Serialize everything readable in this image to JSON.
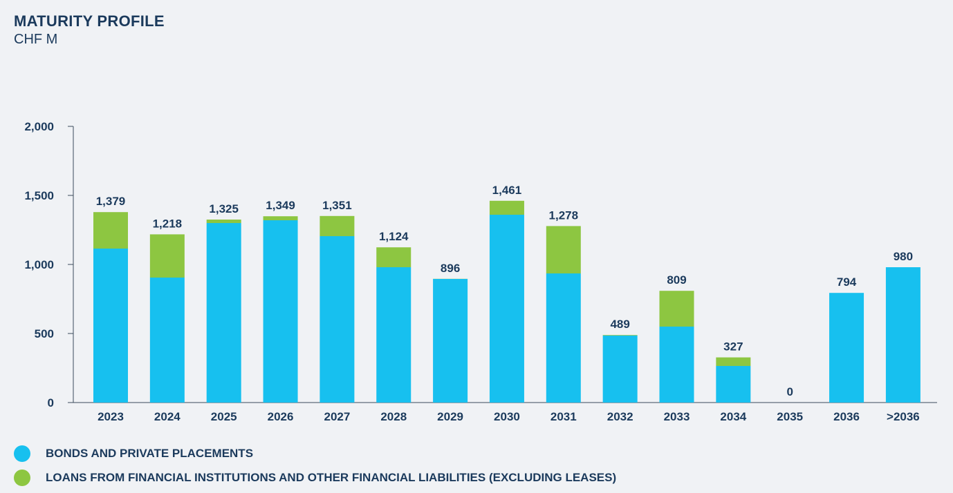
{
  "colors": {
    "bonds": "#17c0ef",
    "loans": "#8dc641",
    "text": "#1b3a5c",
    "axis": "#3a4a5a",
    "background": "#f0f2f5"
  },
  "chart_data": {
    "type": "bar",
    "stacked": true,
    "title": "MATURITY PROFILE",
    "subtitle": "CHF M",
    "xlabel": "",
    "ylabel": "",
    "ylim": [
      0,
      2000
    ],
    "yticks": [
      0,
      500,
      1000,
      1500,
      2000
    ],
    "ytick_labels": [
      "0",
      "500",
      "1,000",
      "1,500",
      "2,000"
    ],
    "categories": [
      "2023",
      "2024",
      "2025",
      "2026",
      "2027",
      "2028",
      "2029",
      "2030",
      "2031",
      "2032",
      "2033",
      "2034",
      "2035",
      "2036",
      ">2036"
    ],
    "series": [
      {
        "name": "BONDS AND PRIVATE PLACEMENTS",
        "color": "#17c0ef",
        "values": [
          1115,
          905,
          1300,
          1320,
          1205,
          980,
          895,
          1360,
          935,
          485,
          550,
          265,
          0,
          794,
          980
        ]
      },
      {
        "name": "LOANS FROM FINANCIAL INSTITUTIONS AND OTHER FINANCIAL LIABILITIES (EXCLUDING LEASES)",
        "color": "#8dc641",
        "values": [
          264,
          313,
          25,
          29,
          146,
          144,
          1,
          101,
          343,
          4,
          259,
          62,
          0,
          0,
          0
        ]
      }
    ],
    "totals": [
      1379,
      1218,
      1325,
      1349,
      1351,
      1124,
      896,
      1461,
      1278,
      489,
      809,
      327,
      0,
      794,
      980
    ],
    "total_labels": [
      "1,379",
      "1,218",
      "1,325",
      "1,349",
      "1,351",
      "1,124",
      "896",
      "1,461",
      "1,278",
      "489",
      "809",
      "327",
      "0",
      "794",
      "980"
    ],
    "legend_position": "bottom-left",
    "grid": false
  }
}
